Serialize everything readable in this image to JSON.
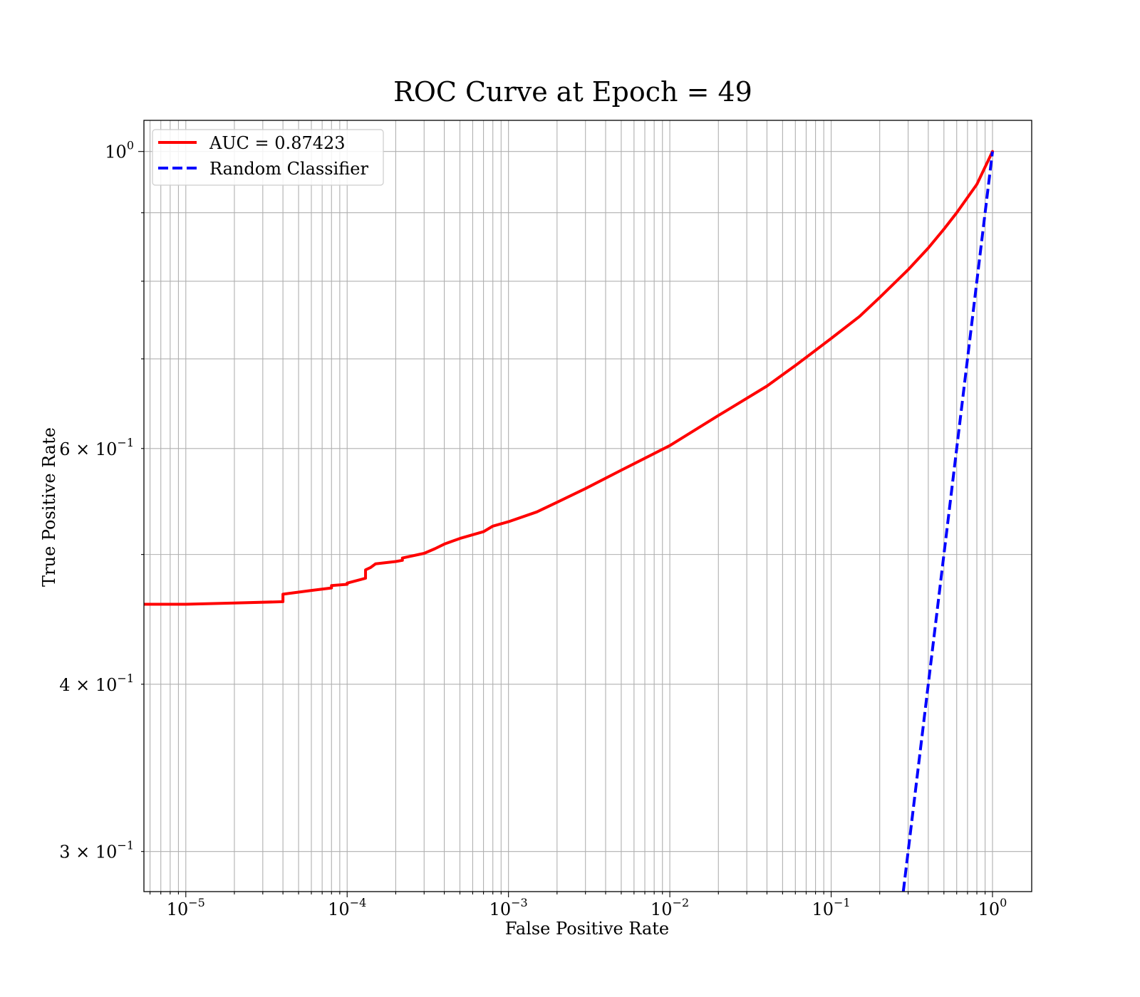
{
  "chart_data": {
    "type": "line",
    "title": "ROC Curve at Epoch = 49",
    "xlabel": "False Positive Rate",
    "ylabel": "True Positive Rate",
    "xscale": "log",
    "yscale": "log",
    "xlim": [
      5.5e-06,
      1.75
    ],
    "ylim": [
      0.28,
      1.055
    ],
    "grid": "both-major-and-minor",
    "legend_position": "upper-left",
    "x_tick_labels": [
      {
        "value": 1e-05,
        "base": "10",
        "exp": "−5"
      },
      {
        "value": 0.0001,
        "base": "10",
        "exp": "−4"
      },
      {
        "value": 0.001,
        "base": "10",
        "exp": "−3"
      },
      {
        "value": 0.01,
        "base": "10",
        "exp": "−2"
      },
      {
        "value": 0.1,
        "base": "10",
        "exp": "−1"
      },
      {
        "value": 1,
        "base": "10",
        "exp": "0"
      }
    ],
    "y_tick_labels": [
      {
        "value": 1.0,
        "mant": "",
        "base": "10",
        "exp": "0"
      },
      {
        "value": 0.6,
        "mant": "6 × ",
        "base": "10",
        "exp": "−1"
      },
      {
        "value": 0.4,
        "mant": "4 × ",
        "base": "10",
        "exp": "−1"
      },
      {
        "value": 0.3,
        "mant": "3 × ",
        "base": "10",
        "exp": "−1"
      }
    ],
    "series": [
      {
        "name": "AUC = 0.87423",
        "color": "#ff0000",
        "style": "solid",
        "x": [
          5.5e-06,
          1e-05,
          2e-05,
          4e-05,
          4e-05,
          6e-05,
          8e-05,
          8e-05,
          0.0001,
          0.0001,
          0.00013,
          0.00013,
          0.00014,
          0.00015,
          0.0002,
          0.00022,
          0.00022,
          0.0003,
          0.00035,
          0.0004,
          0.0005,
          0.0007,
          0.0008,
          0.001,
          0.0015,
          0.002,
          0.003,
          0.005,
          0.01,
          0.02,
          0.04,
          0.06,
          0.1,
          0.15,
          0.2,
          0.3,
          0.4,
          0.5,
          0.6,
          0.8,
          1.0
        ],
        "y": [
          0.459,
          0.459,
          0.46,
          0.461,
          0.467,
          0.47,
          0.472,
          0.474,
          0.475,
          0.476,
          0.48,
          0.487,
          0.489,
          0.492,
          0.494,
          0.495,
          0.497,
          0.501,
          0.505,
          0.509,
          0.514,
          0.52,
          0.525,
          0.529,
          0.538,
          0.547,
          0.56,
          0.578,
          0.603,
          0.635,
          0.668,
          0.692,
          0.725,
          0.753,
          0.778,
          0.816,
          0.847,
          0.875,
          0.9,
          0.945,
          1.0
        ]
      },
      {
        "name": "Random Classifier",
        "color": "#0000ff",
        "style": "dashed",
        "x": [
          0.28,
          1.0
        ],
        "y": [
          0.28,
          1.0
        ]
      }
    ]
  }
}
